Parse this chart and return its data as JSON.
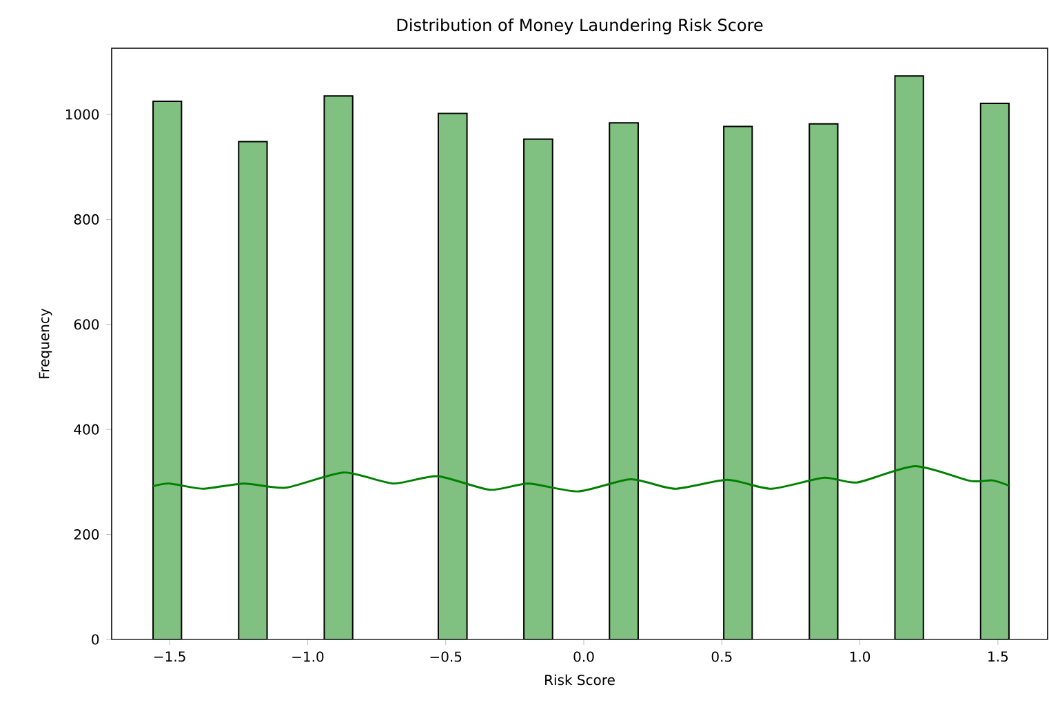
{
  "chart_data": {
    "type": "histogram",
    "title": "Distribution of Money Laundering Risk Score",
    "xlabel": "Risk Score",
    "ylabel": "Frequency",
    "bins": [
      -1.56,
      -1.457,
      -1.353,
      -1.25,
      -1.147,
      -1.043,
      -0.94,
      -0.837,
      -0.733,
      -0.63,
      -0.527,
      -0.423,
      -0.32,
      -0.217,
      -0.113,
      -0.01,
      0.093,
      0.197,
      0.3,
      0.403,
      0.507,
      0.61,
      0.713,
      0.817,
      0.92,
      1.023,
      1.127,
      1.23,
      1.333,
      1.437,
      1.54
    ],
    "series": [
      {
        "color": "#80c080",
        "values": [
          1025,
          0,
          0,
          948,
          0,
          0,
          1035,
          0,
          0,
          0,
          1002,
          0,
          0,
          953,
          0,
          0,
          984,
          0,
          0,
          0,
          977,
          0,
          0,
          982,
          0,
          0,
          1073,
          0,
          0,
          1021
        ]
      },
      {
        "type": "line",
        "color": "#008000",
        "x": [
          -1.56,
          -1.5,
          -1.38,
          -1.23,
          -1.08,
          -0.87,
          -0.69,
          -0.53,
          -0.34,
          -0.2,
          -0.02,
          0.17,
          0.33,
          0.52,
          0.68,
          0.87,
          0.99,
          1.2,
          1.4,
          1.48,
          1.54
        ],
        "values": [
          292,
          297,
          287,
          297,
          289,
          318,
          297,
          311,
          285,
          297,
          282,
          305,
          287,
          304,
          287,
          308,
          299,
          330,
          302,
          303,
          293
        ]
      }
    ],
    "xlim": [
      -1.71,
      1.68
    ],
    "ylim": [
      0,
      1126
    ],
    "xticks": [
      {
        "value": -1.5,
        "label": "−1.5"
      },
      {
        "value": -1.0,
        "label": "−1.0"
      },
      {
        "value": -0.5,
        "label": "−0.5"
      },
      {
        "value": 0,
        "label": "0.0"
      },
      0.5,
      {
        "value": 1,
        "label": "1.0"
      },
      1.5
    ],
    "yticks": [
      0,
      200,
      400,
      600,
      800,
      1000
    ],
    "grid": false
  }
}
